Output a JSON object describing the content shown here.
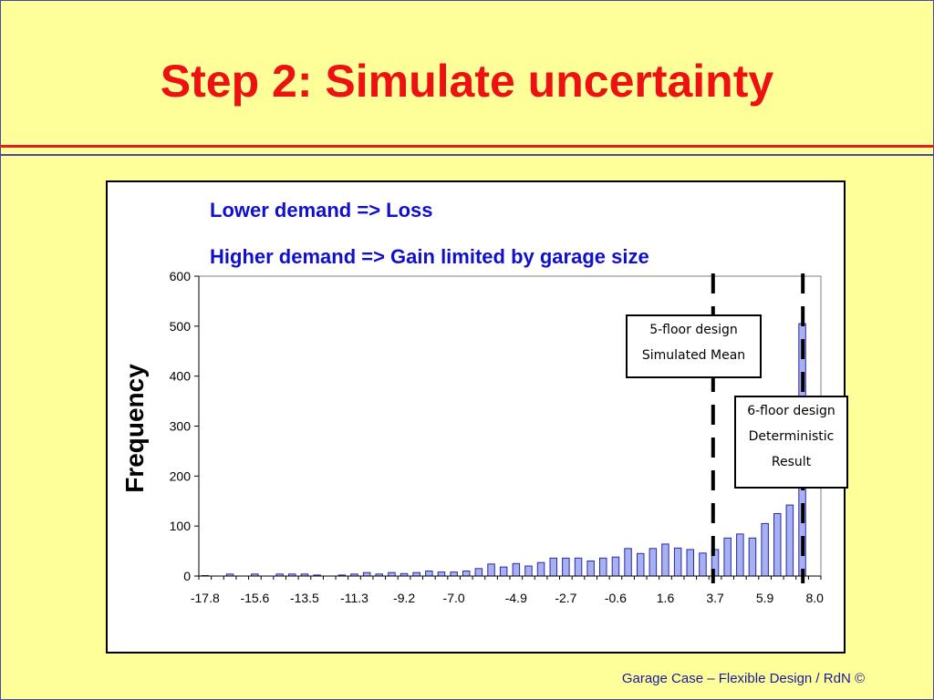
{
  "slide": {
    "title": "Step 2: Simulate uncertainty",
    "footer": "Garage Case – Flexible Design / RdN  ©"
  },
  "annotations": {
    "line1": "Lower demand =>  Loss",
    "line2": "Higher demand => Gain limited by garage size"
  },
  "callouts": {
    "five_floor": [
      "5-floor design",
      "Simulated Mean"
    ],
    "six_floor": [
      "6-floor design",
      "Deterministic",
      "Result"
    ]
  },
  "colors": {
    "background": "#ffff99",
    "title": "#ee1111",
    "annotation_text": "#1010cc",
    "bar_fill": "#a7b0f3",
    "bar_stroke": "#2a2aa0"
  },
  "chart_data": {
    "type": "bar",
    "ylabel": "Frequency",
    "xlabel": "",
    "ylim": [
      0,
      600
    ],
    "yticks": [
      0,
      100,
      200,
      300,
      400,
      500,
      600
    ],
    "x_tick_labels": [
      "-17.8",
      "-15.6",
      "-13.5",
      "-11.3",
      "-9.2",
      "-7.0",
      "-4.9",
      "-2.7",
      "-0.6",
      "1.6",
      "3.7",
      "5.9",
      "8.0"
    ],
    "bin_count": 50,
    "values": [
      1,
      0,
      4,
      0,
      4,
      0,
      4,
      4,
      4,
      2,
      0,
      2,
      4,
      7,
      4,
      7,
      5,
      7,
      10,
      8,
      8,
      10,
      15,
      24,
      18,
      25,
      20,
      27,
      36,
      36,
      36,
      30,
      36,
      38,
      55,
      45,
      55,
      64,
      56,
      53,
      46,
      53,
      76,
      84,
      76,
      105,
      125,
      142,
      505,
      0
    ],
    "reference_lines": [
      {
        "label": "5-floor design Simulated Mean",
        "x": 3.7
      },
      {
        "label": "6-floor design Deterministic Result",
        "x": 7.5
      }
    ],
    "grid": false,
    "legend": "none"
  }
}
